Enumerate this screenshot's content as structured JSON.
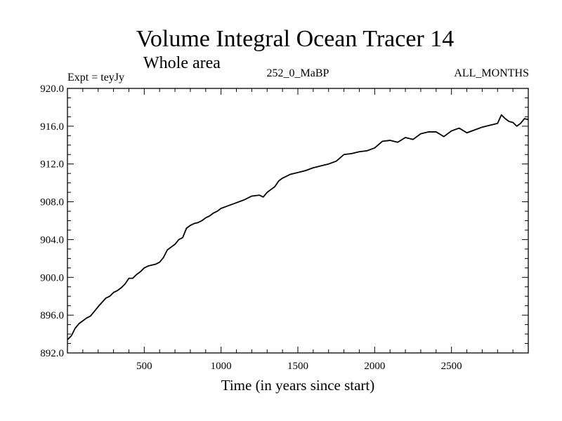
{
  "chart_data": {
    "type": "line",
    "title": "Volume Integral Ocean Tracer 14",
    "subtitle": "Whole area",
    "header_left": "Expt = teyJy",
    "header_center": "252_0_MaBP",
    "header_right": "ALL_MONTHS",
    "xlabel": "Time (in years since start)",
    "ylabel": "",
    "xlim": [
      0,
      3000
    ],
    "ylim": [
      892.0,
      920.0
    ],
    "x_ticks": [
      500,
      1000,
      1500,
      2000,
      2500
    ],
    "x_tick_labels": [
      "500",
      "1000",
      "1500",
      "2000",
      "2500"
    ],
    "y_ticks": [
      892.0,
      896.0,
      900.0,
      904.0,
      908.0,
      912.0,
      916.0,
      920.0
    ],
    "y_tick_labels": [
      "892.0",
      "896.0",
      "900.0",
      "904.0",
      "908.0",
      "912.0",
      "916.0",
      "920.0"
    ],
    "grid": false,
    "series": [
      {
        "name": "Tracer 14",
        "color": "#000000",
        "x": [
          0,
          25,
          50,
          75,
          100,
          125,
          150,
          175,
          200,
          250,
          275,
          300,
          325,
          350,
          375,
          400,
          425,
          450,
          475,
          500,
          525,
          550,
          575,
          600,
          625,
          650,
          675,
          700,
          725,
          750,
          775,
          800,
          825,
          850,
          875,
          900,
          925,
          950,
          975,
          1000,
          1050,
          1100,
          1150,
          1200,
          1250,
          1275,
          1300,
          1325,
          1350,
          1375,
          1400,
          1450,
          1500,
          1550,
          1600,
          1650,
          1700,
          1750,
          1800,
          1850,
          1900,
          1950,
          2000,
          2050,
          2100,
          2150,
          2200,
          2250,
          2300,
          2350,
          2400,
          2450,
          2500,
          2550,
          2600,
          2650,
          2700,
          2750,
          2800,
          2825,
          2850,
          2875,
          2900,
          2925,
          2950,
          2975,
          3000
        ],
        "y": [
          893.4,
          893.8,
          894.6,
          895.1,
          895.4,
          895.7,
          895.9,
          896.4,
          896.9,
          897.8,
          898.0,
          898.4,
          898.6,
          898.9,
          899.3,
          899.9,
          899.9,
          900.3,
          900.6,
          901.0,
          901.2,
          901.3,
          901.4,
          901.6,
          902.1,
          902.9,
          903.2,
          903.5,
          904.0,
          904.2,
          905.2,
          905.5,
          905.7,
          905.8,
          906.0,
          906.3,
          906.5,
          906.8,
          907.0,
          907.3,
          907.6,
          907.9,
          908.2,
          908.6,
          908.7,
          908.5,
          909.0,
          909.3,
          909.6,
          910.2,
          910.5,
          910.9,
          911.1,
          911.3,
          911.6,
          911.8,
          912.0,
          912.3,
          913.0,
          913.1,
          913.3,
          913.4,
          913.7,
          914.4,
          914.5,
          914.3,
          914.8,
          914.6,
          915.2,
          915.4,
          915.4,
          914.9,
          915.5,
          915.8,
          915.3,
          915.6,
          915.9,
          916.1,
          916.3,
          917.2,
          916.8,
          916.5,
          916.4,
          916.0,
          916.3,
          916.8,
          916.7
        ]
      }
    ]
  }
}
